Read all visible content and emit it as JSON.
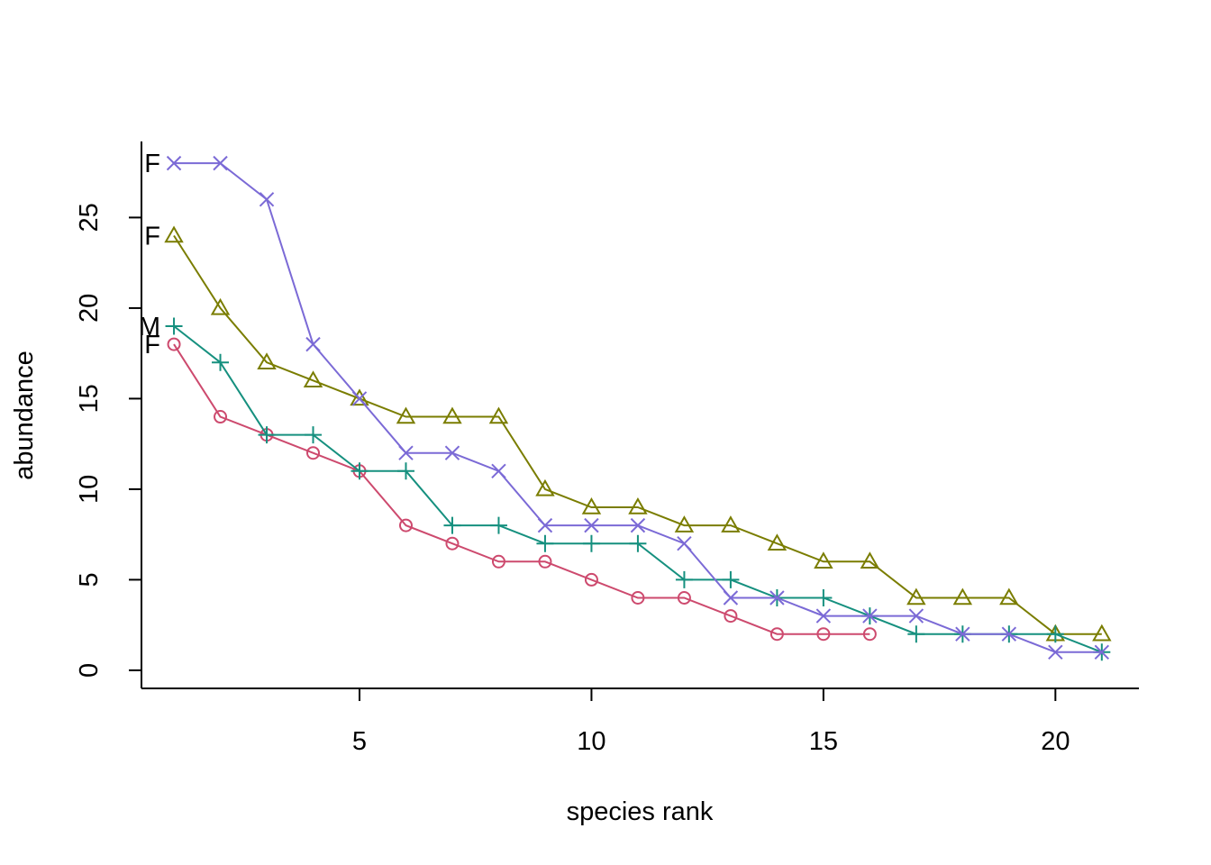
{
  "chart_data": {
    "type": "line",
    "title": "",
    "xlabel": "species rank",
    "ylabel": "abundance",
    "xlim": [
      0.3,
      21.8
    ],
    "ylim": [
      -1,
      29.2
    ],
    "xticks": [
      5,
      10,
      15,
      20
    ],
    "yticks": [
      0,
      5,
      10,
      15,
      20,
      25
    ],
    "grid": false,
    "legend": "none",
    "series": [
      {
        "label": "F",
        "marker": "circle",
        "color": "#CD4A6E",
        "x": [
          1,
          2,
          3,
          4,
          5,
          6,
          7,
          8,
          9,
          10,
          11,
          12,
          13,
          14,
          15,
          16
        ],
        "values": [
          18,
          14,
          13,
          12,
          11,
          8,
          7,
          6,
          6,
          5,
          4,
          4,
          3,
          2,
          2,
          2
        ]
      },
      {
        "label": "F",
        "marker": "triangle",
        "color": "#7A7D00",
        "x": [
          1,
          2,
          3,
          4,
          5,
          6,
          7,
          8,
          9,
          10,
          11,
          12,
          13,
          14,
          15,
          16,
          17,
          18,
          19,
          20,
          21
        ],
        "values": [
          24,
          20,
          17,
          16,
          15,
          14,
          14,
          14,
          10,
          9,
          9,
          8,
          8,
          7,
          6,
          6,
          4,
          4,
          4,
          2,
          2
        ]
      },
      {
        "label": "M",
        "marker": "plus",
        "color": "#16907F",
        "x": [
          1,
          2,
          3,
          4,
          5,
          6,
          7,
          8,
          9,
          10,
          11,
          12,
          13,
          14,
          15,
          16,
          17,
          18,
          19,
          20,
          21
        ],
        "values": [
          19,
          17,
          13,
          13,
          11,
          11,
          8,
          8,
          7,
          7,
          7,
          5,
          5,
          4,
          4,
          3,
          2,
          2,
          2,
          2,
          1
        ]
      },
      {
        "label": "F",
        "marker": "cross",
        "color": "#7B6AD6",
        "x": [
          1,
          2,
          3,
          4,
          5,
          6,
          7,
          8,
          9,
          10,
          11,
          12,
          13,
          14,
          15,
          16,
          17,
          18,
          19,
          20,
          21
        ],
        "values": [
          28,
          28,
          26,
          18,
          15,
          12,
          12,
          11,
          8,
          8,
          8,
          7,
          4,
          4,
          3,
          3,
          3,
          2,
          2,
          1,
          1
        ]
      }
    ]
  }
}
